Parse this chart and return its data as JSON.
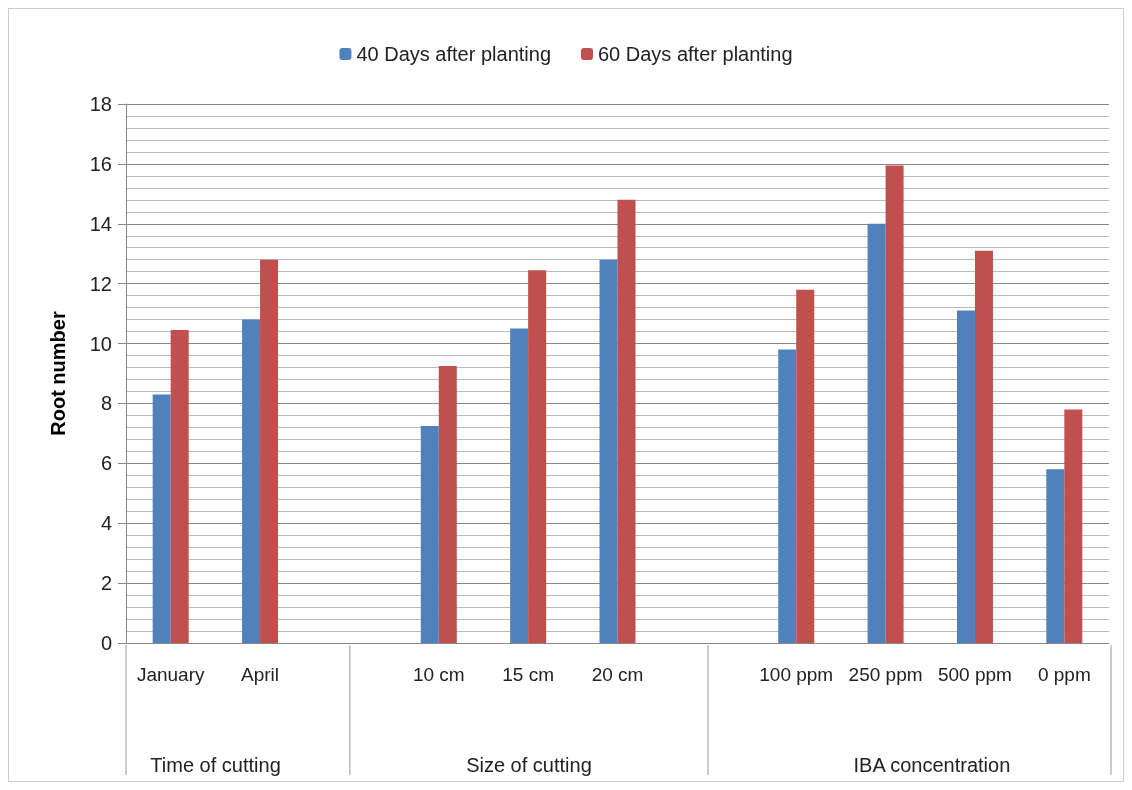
{
  "chart_data": {
    "type": "bar",
    "ylabel": "Root number",
    "categories": [
      "January",
      "April",
      null,
      "10 cm",
      "15 cm",
      "20 cm",
      null,
      "100 ppm",
      "250 ppm",
      "500 ppm",
      "0 ppm"
    ],
    "series": [
      {
        "name": "40 Days after planting",
        "color": "#4f81bd",
        "values": [
          8.3,
          10.8,
          null,
          7.25,
          10.5,
          12.8,
          null,
          9.8,
          14.0,
          11.1,
          5.8
        ]
      },
      {
        "name": "60 Days after planting",
        "color": "#c0504d",
        "values": [
          10.45,
          12.8,
          null,
          9.25,
          12.45,
          14.8,
          null,
          11.8,
          15.95,
          13.1,
          7.8
        ]
      }
    ],
    "annotations": [
      "Time of cutting",
      "Size of cutting",
      "IBA concentration"
    ],
    "ylim": [
      0,
      18
    ],
    "yticks": [
      0,
      2,
      4,
      6,
      8,
      10,
      12,
      14,
      16,
      18
    ],
    "grid": true,
    "legend": "top"
  }
}
